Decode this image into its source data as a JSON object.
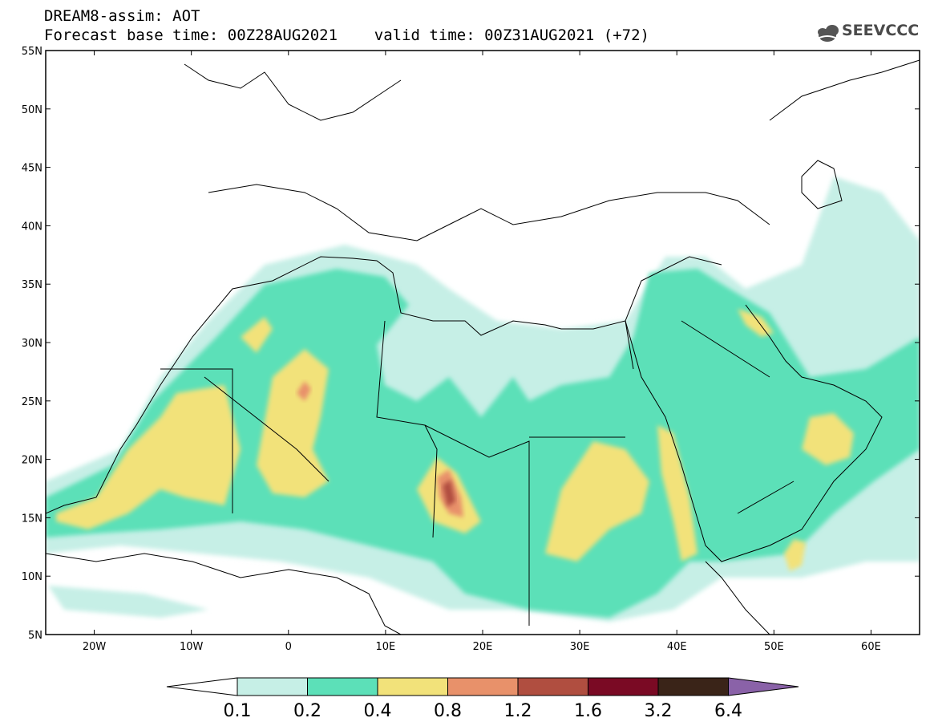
{
  "header": {
    "line1": "DREAM8-assim: AOT",
    "line2": "Forecast base time: 00Z28AUG2021    valid time: 00Z31AUG2021 (+72)"
  },
  "logo": {
    "text": "SEEVCCC",
    "icon": "cloud-icon"
  },
  "map": {
    "lon_range": [
      -25,
      65
    ],
    "lat_range": [
      5,
      55
    ],
    "lat_ticks": [
      "55N",
      "50N",
      "45N",
      "40N",
      "35N",
      "30N",
      "25N",
      "20N",
      "15N",
      "10N",
      "5N"
    ],
    "lon_ticks": [
      "20W",
      "10W",
      "0",
      "10E",
      "20E",
      "30E",
      "40E",
      "50E",
      "60E"
    ]
  },
  "colorbar": {
    "labels": [
      "0.1",
      "0.2",
      "0.4",
      "0.8",
      "1.2",
      "1.6",
      "3.2",
      "6.4"
    ],
    "colors": {
      "below": "#ffffff",
      "c1": "#c6efe6",
      "c2": "#5ce0b8",
      "c3": "#f2e27a",
      "c4": "#e8916a",
      "c5": "#b04e40",
      "c6": "#7a0a24",
      "c7": "#3a2418",
      "above": "#8a62a8"
    }
  }
}
